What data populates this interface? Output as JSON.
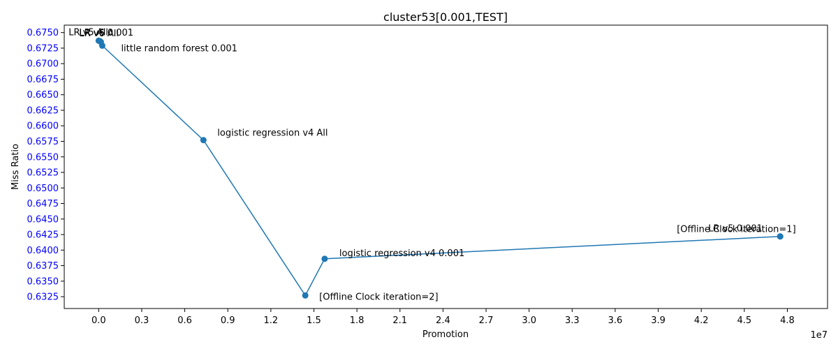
{
  "chart_data": {
    "type": "line",
    "title": "cluster53[0.001,TEST]",
    "xlabel": "Promotion",
    "ylabel": "Miss Ratio",
    "x_offset_text": "1e7",
    "xlim": [
      -2400000,
      50800000
    ],
    "ylim": [
      0.6306,
      0.6762
    ],
    "xticks": [
      0,
      3000000,
      6000000,
      9000000,
      12000000,
      15000000,
      18000000,
      21000000,
      24000000,
      27000000,
      30000000,
      33000000,
      36000000,
      39000000,
      42000000,
      45000000,
      48000000
    ],
    "xtick_labels": [
      "0.0",
      "0.3",
      "0.6",
      "0.9",
      "1.2",
      "1.5",
      "1.8",
      "2.1",
      "2.4",
      "2.7",
      "3.0",
      "3.3",
      "3.6",
      "3.9",
      "4.2",
      "4.5",
      "4.8"
    ],
    "yticks": [
      0.6325,
      0.635,
      0.6375,
      0.64,
      0.6425,
      0.645,
      0.6475,
      0.65,
      0.6525,
      0.655,
      0.6575,
      0.66,
      0.6625,
      0.665,
      0.6675,
      0.67,
      0.6725,
      0.675
    ],
    "ytick_labels": [
      "0.6325",
      "0.6350",
      "0.6375",
      "0.6400",
      "0.6425",
      "0.6450",
      "0.6475",
      "0.6500",
      "0.6525",
      "0.6550",
      "0.6575",
      "0.6600",
      "0.6625",
      "0.6650",
      "0.6675",
      "0.6700",
      "0.6725",
      "0.6750"
    ],
    "ytick_color": "#0000ff",
    "line_color": "#1f77b4",
    "grid": false,
    "series": [
      {
        "points": [
          {
            "x": 0,
            "y": 0.6737,
            "label": "LR v5 All"
          },
          {
            "x": 100000,
            "y": 0.6736,
            "label": "LR v6 0.001"
          },
          {
            "x": 150000,
            "y": 0.6735,
            "label": "LR v6 All"
          },
          {
            "x": 250000,
            "y": 0.6729,
            "label": "little random forest 0.001"
          },
          {
            "x": 7300000,
            "y": 0.6577,
            "label": "logistic regression v4 All"
          },
          {
            "x": 14400000,
            "y": 0.6327,
            "label": "[Offline Clock iteration=2]"
          },
          {
            "x": 15750000,
            "y": 0.6386,
            "label": "logistic regression v4 0.001"
          },
          {
            "x": 47500000,
            "y": 0.6422,
            "label": "[Offline Clock iteration=1]"
          },
          {
            "x": 47500000,
            "y": 0.6422,
            "label": "LR v5 0.001"
          }
        ]
      }
    ]
  }
}
